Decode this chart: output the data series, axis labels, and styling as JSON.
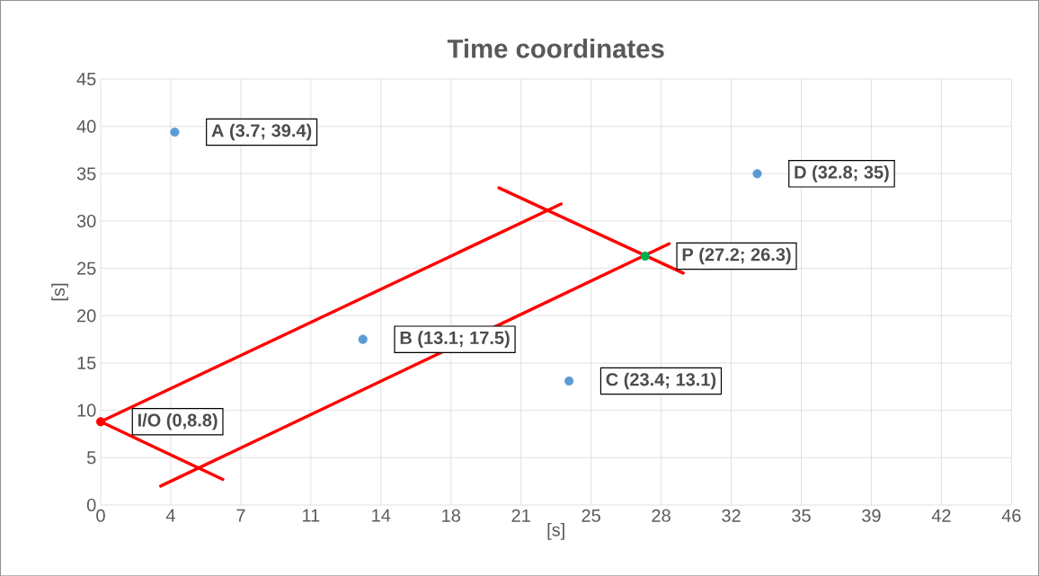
{
  "chart_data": {
    "type": "scatter",
    "title": "Time coordinates",
    "xlabel": "[s]",
    "ylabel": "[s]",
    "xlim": [
      0,
      45.5
    ],
    "ylim": [
      0,
      45
    ],
    "xticks": [
      0,
      {
        "value": 3.5,
        "label": "4"
      },
      7,
      {
        "value": 10.5,
        "label": "11"
      },
      14,
      {
        "value": 17.5,
        "label": "18"
      },
      21,
      {
        "value": 24.5,
        "label": "25"
      },
      28,
      {
        "value": 31.5,
        "label": "32"
      },
      35,
      {
        "value": 38.5,
        "label": "39"
      },
      42,
      {
        "value": 45.5,
        "label": "46"
      }
    ],
    "yticks": [
      0,
      5,
      10,
      15,
      20,
      25,
      30,
      35,
      40,
      45
    ],
    "grid": true,
    "marker": "circle",
    "series": [
      {
        "color": "#5b9bd5",
        "x": [
          3.7,
          13.1,
          23.4,
          32.8
        ],
        "values": [
          39.4,
          17.5,
          13.1,
          35
        ]
      },
      {
        "color": "#ff0000",
        "x": [
          0
        ],
        "values": [
          8.8
        ]
      },
      {
        "color": "#00b050",
        "x": [
          27.2
        ],
        "values": [
          26.3
        ]
      },
      {
        "type": "line",
        "color": "#ff0000",
        "marker": "none",
        "line_style": "solid",
        "x": [
          0,
          23.0
        ],
        "values": [
          8.8,
          31.8
        ]
      },
      {
        "type": "line",
        "color": "#ff0000",
        "marker": "none",
        "line_style": "solid",
        "x": [
          3.0,
          28.4
        ],
        "values": [
          2.0,
          27.6
        ]
      },
      {
        "type": "line",
        "color": "#ff0000",
        "marker": "none",
        "line_style": "solid",
        "x": [
          0,
          6.1
        ],
        "values": [
          8.8,
          2.7
        ]
      },
      {
        "type": "line",
        "color": "#ff0000",
        "marker": "none",
        "line_style": "solid",
        "x": [
          19.9,
          29.1
        ],
        "values": [
          33.5,
          24.5
        ]
      }
    ],
    "annotations": [
      {
        "text": "A (3.7; 39.4)",
        "x": 3.7,
        "y": 39.4
      },
      {
        "text": "B (13.1; 17.5)",
        "x": 13.1,
        "y": 17.5
      },
      {
        "text": "C (23.4; 13.1)",
        "x": 23.4,
        "y": 13.1
      },
      {
        "text": "D (32.8; 35)",
        "x": 32.8,
        "y": 35
      },
      {
        "text": "I/O (0,8.8)",
        "x": 0,
        "y": 8.8
      },
      {
        "text": "P (27.2; 26.3)",
        "x": 27.2,
        "y": 26.3
      }
    ]
  }
}
